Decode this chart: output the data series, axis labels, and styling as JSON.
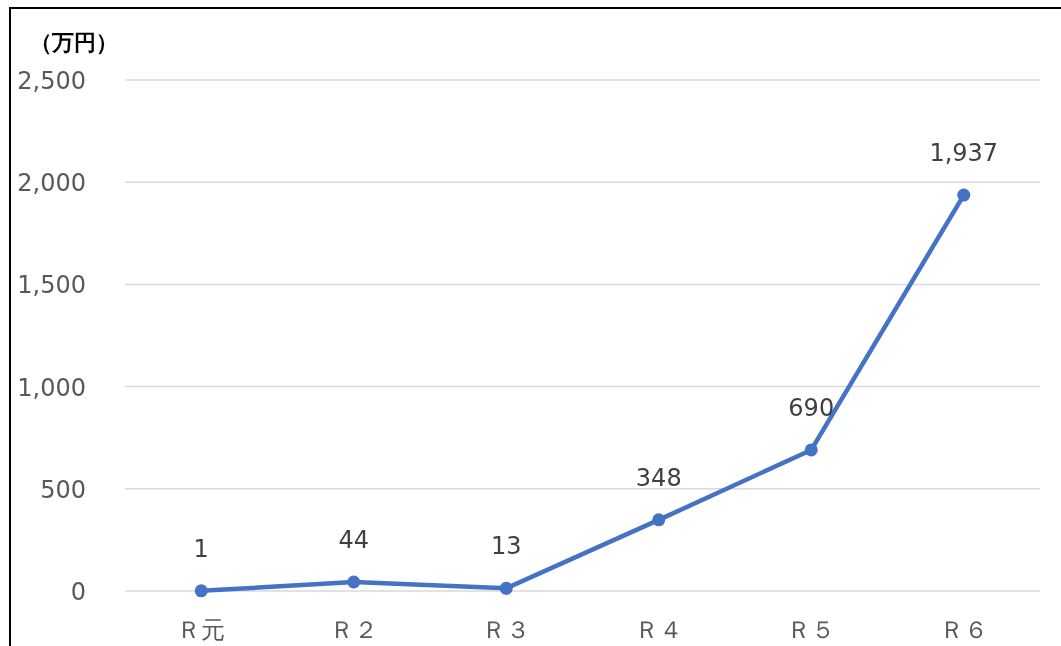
{
  "chart_data": {
    "type": "line",
    "ylabel": "（万円）",
    "categories": [
      "Ｒ元",
      "Ｒ２",
      "Ｒ３",
      "Ｒ４",
      "Ｒ５",
      "Ｒ６"
    ],
    "series": [
      {
        "color": "#4472c4",
        "values": [
          1,
          44,
          13,
          348,
          690,
          1937
        ],
        "value_labels": [
          "1",
          "44",
          "13",
          "348",
          "690",
          "1,937"
        ]
      }
    ],
    "ylim": [
      0,
      2500
    ],
    "yticks": [
      {
        "value": 0,
        "label": "0"
      },
      {
        "value": 500,
        "label": "500"
      },
      {
        "value": 1000,
        "label": "1,000"
      },
      {
        "value": 1500,
        "label": "1,500"
      },
      {
        "value": 2000,
        "label": "2,000"
      },
      {
        "value": 2500,
        "label": "2,500"
      }
    ],
    "grid": "y",
    "marker": "circle",
    "line_style": "solid"
  }
}
